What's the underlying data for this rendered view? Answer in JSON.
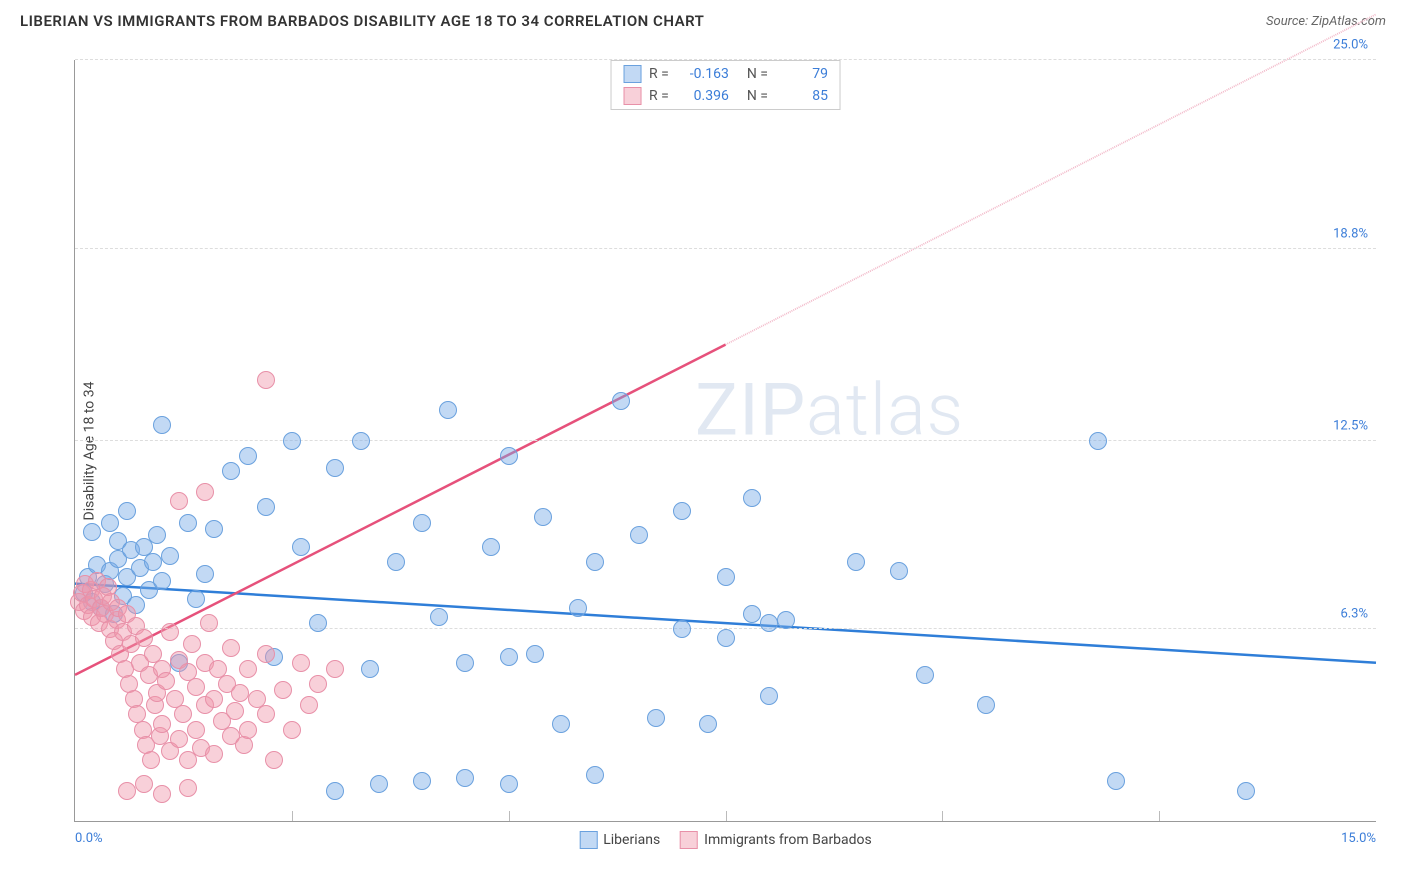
{
  "header": {
    "title": "LIBERIAN VS IMMIGRANTS FROM BARBADOS DISABILITY AGE 18 TO 34 CORRELATION CHART",
    "source": "Source: ZipAtlas.com"
  },
  "ylabel": "Disability Age 18 to 34",
  "watermark": {
    "part1": "ZIP",
    "part2": "atlas"
  },
  "chart": {
    "type": "scatter",
    "xlim": [
      0,
      15
    ],
    "ylim": [
      0,
      25
    ],
    "xticks": [
      0,
      15
    ],
    "xtick_labels": [
      "0.0%",
      "15.0%"
    ],
    "xtick_color": "#3b7dd8",
    "yticks": [
      6.3,
      12.5,
      18.8,
      25.0
    ],
    "ytick_labels": [
      "6.3%",
      "12.5%",
      "18.8%",
      "25.0%"
    ],
    "ytick_color": "#3b7dd8",
    "xminor_ticks": [
      2.5,
      5.0,
      7.5,
      10.0,
      12.5
    ],
    "grid_color": "#dddddd",
    "background_color": "#ffffff",
    "point_radius": 9,
    "series": [
      {
        "name": "Liberians",
        "fill": "rgba(120,170,230,0.45)",
        "stroke": "#6aa1de",
        "trend_color": "#2f7ed8",
        "trend_dashed_color": "#2f7ed8",
        "trend": {
          "x1": 0,
          "y1": 7.8,
          "x2": 15,
          "y2": 5.2,
          "x_solid_end": 15
        },
        "R": "-0.163",
        "N": "79",
        "points": [
          [
            0.1,
            7.5
          ],
          [
            0.15,
            8.0
          ],
          [
            0.2,
            7.2
          ],
          [
            0.25,
            8.4
          ],
          [
            0.3,
            7.0
          ],
          [
            0.35,
            7.8
          ],
          [
            0.4,
            8.2
          ],
          [
            0.45,
            6.8
          ],
          [
            0.5,
            8.6
          ],
          [
            0.5,
            9.2
          ],
          [
            0.55,
            7.4
          ],
          [
            0.6,
            8.0
          ],
          [
            0.65,
            8.9
          ],
          [
            0.7,
            7.1
          ],
          [
            0.75,
            8.3
          ],
          [
            0.8,
            9.0
          ],
          [
            0.85,
            7.6
          ],
          [
            0.9,
            8.5
          ],
          [
            0.95,
            9.4
          ],
          [
            1.0,
            7.9
          ],
          [
            1.0,
            13.0
          ],
          [
            1.1,
            8.7
          ],
          [
            1.2,
            5.2
          ],
          [
            1.3,
            9.8
          ],
          [
            1.4,
            7.3
          ],
          [
            1.5,
            8.1
          ],
          [
            0.2,
            9.5
          ],
          [
            0.4,
            9.8
          ],
          [
            0.6,
            10.2
          ],
          [
            1.6,
            9.6
          ],
          [
            1.8,
            11.5
          ],
          [
            2.0,
            12.0
          ],
          [
            2.2,
            10.3
          ],
          [
            2.3,
            5.4
          ],
          [
            2.5,
            12.5
          ],
          [
            2.6,
            9.0
          ],
          [
            2.8,
            6.5
          ],
          [
            3.0,
            11.6
          ],
          [
            3.0,
            1.0
          ],
          [
            3.3,
            12.5
          ],
          [
            3.4,
            5.0
          ],
          [
            3.5,
            1.2
          ],
          [
            3.7,
            8.5
          ],
          [
            4.0,
            9.8
          ],
          [
            4.0,
            1.3
          ],
          [
            4.3,
            13.5
          ],
          [
            4.5,
            5.2
          ],
          [
            4.5,
            1.4
          ],
          [
            4.8,
            9.0
          ],
          [
            5.0,
            12.0
          ],
          [
            5.0,
            5.4
          ],
          [
            5.0,
            1.2
          ],
          [
            5.3,
            5.5
          ],
          [
            5.4,
            10.0
          ],
          [
            5.6,
            3.2
          ],
          [
            5.8,
            7.0
          ],
          [
            6.0,
            1.5
          ],
          [
            6.3,
            13.8
          ],
          [
            6.5,
            9.4
          ],
          [
            6.7,
            3.4
          ],
          [
            7.0,
            6.3
          ],
          [
            7.0,
            10.2
          ],
          [
            7.3,
            3.2
          ],
          [
            7.5,
            8.0
          ],
          [
            7.8,
            6.8
          ],
          [
            7.8,
            10.6
          ],
          [
            8.0,
            6.5
          ],
          [
            8.2,
            6.6
          ],
          [
            9.0,
            8.5
          ],
          [
            9.5,
            8.2
          ],
          [
            9.8,
            4.8
          ],
          [
            8.0,
            4.1
          ],
          [
            10.5,
            3.8
          ],
          [
            11.8,
            12.5
          ],
          [
            12.0,
            1.3
          ],
          [
            13.5,
            1.0
          ],
          [
            7.5,
            6.0
          ],
          [
            6.0,
            8.5
          ],
          [
            4.2,
            6.7
          ]
        ]
      },
      {
        "name": "Immigrants from Barbados",
        "fill": "rgba(240,150,170,0.45)",
        "stroke": "#e890a8",
        "trend_color": "#e6517b",
        "trend_dashed_color": "#f2b9c9",
        "trend": {
          "x1": 0,
          "y1": 4.8,
          "x2": 15,
          "y2": 26.5,
          "x_solid_end": 7.5
        },
        "R": "0.396",
        "N": "85",
        "points": [
          [
            0.05,
            7.2
          ],
          [
            0.08,
            7.5
          ],
          [
            0.1,
            6.9
          ],
          [
            0.12,
            7.8
          ],
          [
            0.15,
            7.1
          ],
          [
            0.18,
            7.6
          ],
          [
            0.2,
            6.7
          ],
          [
            0.22,
            7.3
          ],
          [
            0.25,
            7.9
          ],
          [
            0.28,
            6.5
          ],
          [
            0.3,
            7.0
          ],
          [
            0.32,
            7.4
          ],
          [
            0.35,
            6.8
          ],
          [
            0.38,
            7.7
          ],
          [
            0.4,
            6.3
          ],
          [
            0.42,
            7.2
          ],
          [
            0.45,
            5.9
          ],
          [
            0.48,
            6.6
          ],
          [
            0.5,
            7.0
          ],
          [
            0.52,
            5.5
          ],
          [
            0.55,
            6.2
          ],
          [
            0.58,
            5.0
          ],
          [
            0.6,
            6.8
          ],
          [
            0.62,
            4.5
          ],
          [
            0.65,
            5.8
          ],
          [
            0.68,
            4.0
          ],
          [
            0.7,
            6.4
          ],
          [
            0.72,
            3.5
          ],
          [
            0.75,
            5.2
          ],
          [
            0.78,
            3.0
          ],
          [
            0.8,
            6.0
          ],
          [
            0.82,
            2.5
          ],
          [
            0.85,
            4.8
          ],
          [
            0.88,
            2.0
          ],
          [
            0.9,
            5.5
          ],
          [
            0.92,
            3.8
          ],
          [
            0.95,
            4.2
          ],
          [
            0.98,
            2.8
          ],
          [
            1.0,
            5.0
          ],
          [
            1.0,
            3.2
          ],
          [
            1.05,
            4.6
          ],
          [
            1.1,
            2.3
          ],
          [
            1.1,
            6.2
          ],
          [
            1.15,
            4.0
          ],
          [
            1.2,
            5.3
          ],
          [
            1.2,
            2.7
          ],
          [
            1.25,
            3.5
          ],
          [
            1.3,
            4.9
          ],
          [
            1.3,
            2.0
          ],
          [
            1.35,
            5.8
          ],
          [
            1.4,
            3.0
          ],
          [
            1.4,
            4.4
          ],
          [
            1.45,
            2.4
          ],
          [
            1.5,
            5.2
          ],
          [
            1.5,
            3.8
          ],
          [
            1.55,
            6.5
          ],
          [
            1.6,
            4.0
          ],
          [
            1.6,
            2.2
          ],
          [
            1.65,
            5.0
          ],
          [
            1.7,
            3.3
          ],
          [
            1.75,
            4.5
          ],
          [
            1.8,
            2.8
          ],
          [
            1.8,
            5.7
          ],
          [
            1.85,
            3.6
          ],
          [
            1.9,
            4.2
          ],
          [
            1.95,
            2.5
          ],
          [
            2.0,
            5.0
          ],
          [
            2.0,
            3.0
          ],
          [
            2.1,
            4.0
          ],
          [
            2.2,
            3.5
          ],
          [
            2.2,
            5.5
          ],
          [
            2.3,
            2.0
          ],
          [
            2.4,
            4.3
          ],
          [
            2.5,
            3.0
          ],
          [
            2.6,
            5.2
          ],
          [
            2.7,
            3.8
          ],
          [
            2.8,
            4.5
          ],
          [
            3.0,
            5.0
          ],
          [
            0.6,
            1.0
          ],
          [
            0.8,
            1.2
          ],
          [
            1.0,
            0.9
          ],
          [
            1.3,
            1.1
          ],
          [
            1.2,
            10.5
          ],
          [
            1.5,
            10.8
          ],
          [
            2.2,
            14.5
          ]
        ]
      }
    ]
  },
  "legend_top_labels": {
    "R": "R =",
    "N": "N ="
  },
  "legend_bottom": [
    {
      "label": "Liberians",
      "fill": "rgba(120,170,230,0.45)",
      "stroke": "#6aa1de"
    },
    {
      "label": "Immigrants from Barbados",
      "fill": "rgba(240,150,170,0.45)",
      "stroke": "#e890a8"
    }
  ]
}
